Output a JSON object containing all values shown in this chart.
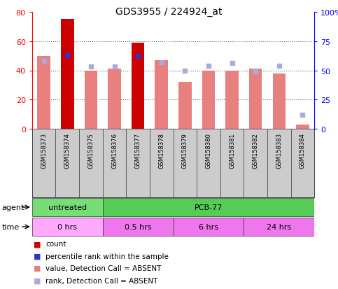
{
  "title": "GDS3955 / 224924_at",
  "samples": [
    "GSM158373",
    "GSM158374",
    "GSM158375",
    "GSM158376",
    "GSM158377",
    "GSM158378",
    "GSM158379",
    "GSM158380",
    "GSM158381",
    "GSM158382",
    "GSM158383",
    "GSM158384"
  ],
  "bar_values": [
    50,
    75,
    40,
    41,
    59,
    47,
    32,
    40,
    40,
    41,
    38,
    3
  ],
  "bar_colors": [
    "#e88080",
    "#cc0000",
    "#e88080",
    "#e88080",
    "#cc0000",
    "#e88080",
    "#e88080",
    "#e88080",
    "#e88080",
    "#e88080",
    "#e88080",
    "#e88080"
  ],
  "rank_dots": [
    58,
    63,
    53,
    53,
    62,
    57,
    50,
    54,
    56,
    49,
    54,
    12
  ],
  "rank_dot_colors": [
    "#aaaadd",
    "#3333cc",
    "#aaaadd",
    "#aaaadd",
    "#3333cc",
    "#aaaadd",
    "#aaaadd",
    "#aaaadd",
    "#aaaadd",
    "#aaaadd",
    "#aaaadd",
    "#aaaadd"
  ],
  "left_ylim": [
    0,
    80
  ],
  "right_ylim": [
    0,
    100
  ],
  "left_yticks": [
    0,
    20,
    40,
    60,
    80
  ],
  "right_yticks": [
    0,
    25,
    50,
    75,
    100
  ],
  "right_yticklabels": [
    "0",
    "25",
    "50",
    "75",
    "100%"
  ],
  "agent_labels": [
    {
      "text": "untreated",
      "start": 0,
      "end": 3,
      "color": "#77dd77"
    },
    {
      "text": "PCB-77",
      "start": 3,
      "end": 12,
      "color": "#55cc55"
    }
  ],
  "time_labels": [
    {
      "text": "0 hrs",
      "start": 0,
      "end": 3,
      "color": "#ffaaff"
    },
    {
      "text": "0.5 hrs",
      "start": 3,
      "end": 6,
      "color": "#ee77ee"
    },
    {
      "text": "6 hrs",
      "start": 6,
      "end": 9,
      "color": "#ee77ee"
    },
    {
      "text": "24 hrs",
      "start": 9,
      "end": 12,
      "color": "#ee77ee"
    }
  ],
  "bg_color": "#ffffff",
  "plot_bg": "#ffffff",
  "grid_color": "#888888",
  "legend_colors": [
    "#cc0000",
    "#3333cc",
    "#e88080",
    "#aaaadd"
  ],
  "legend_labels": [
    "count",
    "percentile rank within the sample",
    "value, Detection Call = ABSENT",
    "rank, Detection Call = ABSENT"
  ]
}
